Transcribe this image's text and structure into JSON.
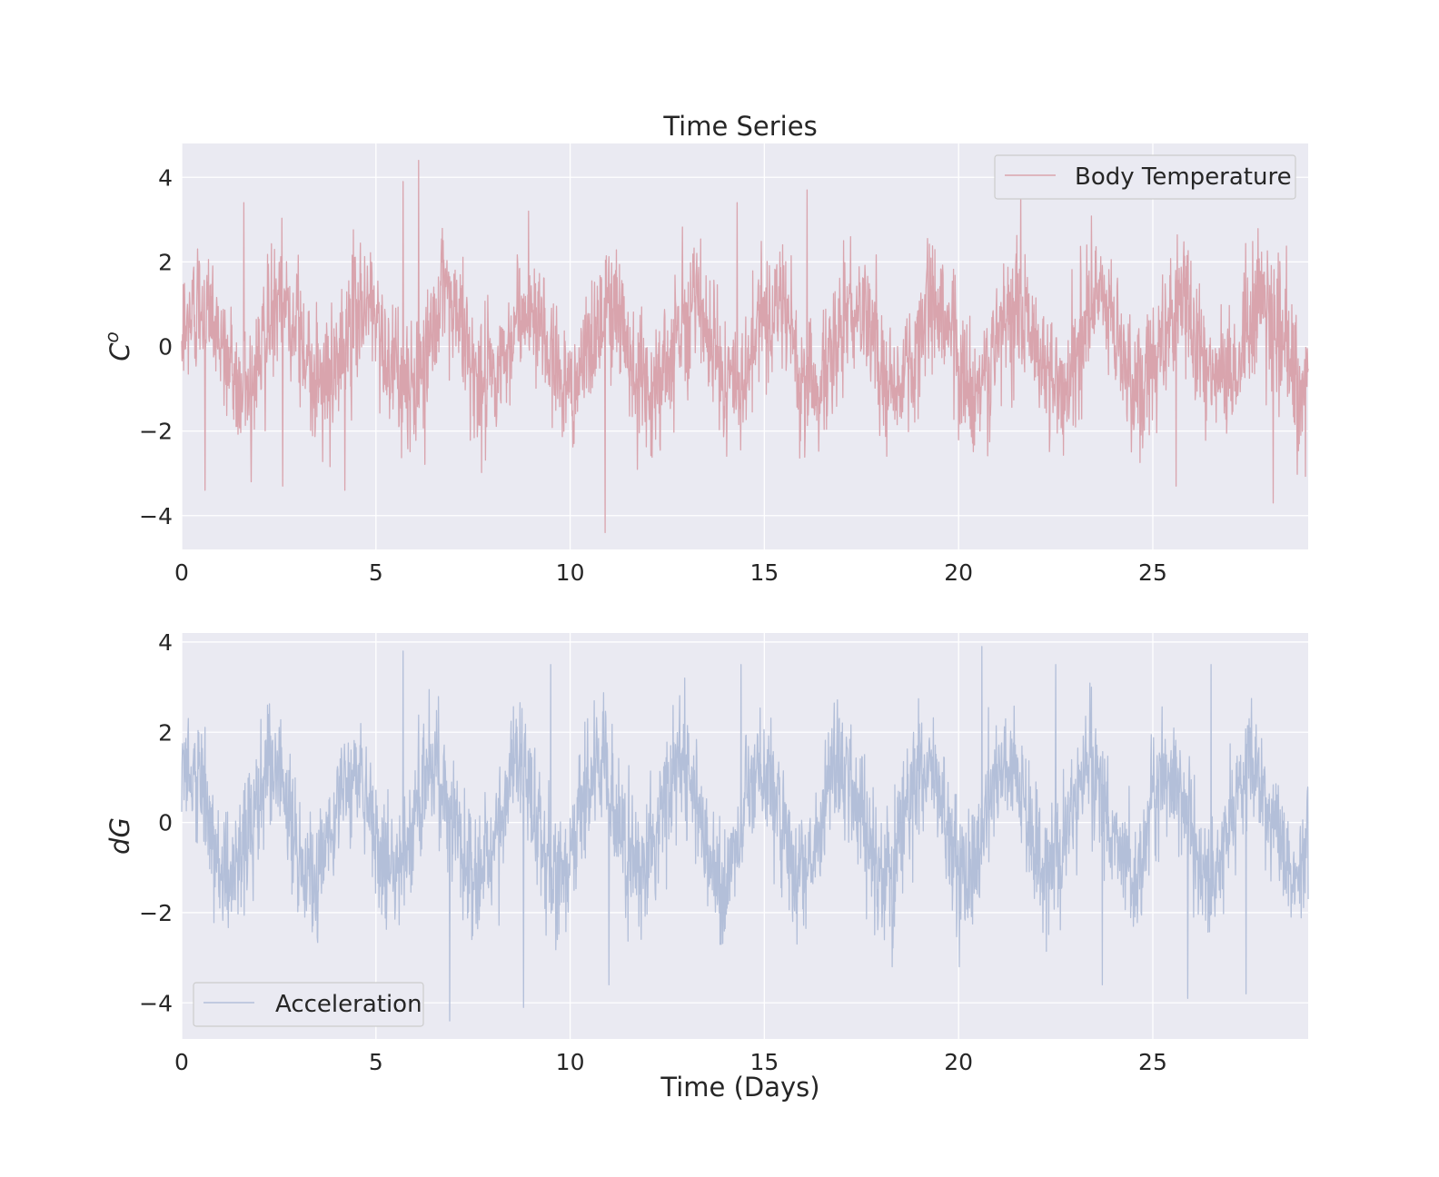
{
  "chart_data": [
    {
      "type": "line",
      "title": "Time Series",
      "xlabel": "",
      "ylabel": "C°",
      "ylabel_base": "C",
      "ylabel_sup": "o",
      "xlim": [
        0,
        29
      ],
      "ylim": [
        -4.8,
        4.8
      ],
      "xticks": [
        0,
        5,
        10,
        15,
        20,
        25
      ],
      "yticks": [
        -4,
        -2,
        0,
        2,
        4
      ],
      "ytick_labels": [
        "−4",
        "−2",
        "0",
        "2",
        "4"
      ],
      "grid": true,
      "legend_position": "upper-right",
      "series": [
        {
          "name": "Body Temperature",
          "color": "#dd8452",
          "draw_color": "#d9a4ad",
          "period_days": 2.1,
          "amplitude": 1.0,
          "noise": 0.95,
          "peaks": [
            [
              6.1,
              4.4
            ],
            [
              5.7,
              3.9
            ],
            [
              1.6,
              3.4
            ],
            [
              21.6,
              3.7
            ],
            [
              16.1,
              3.7
            ],
            [
              14.3,
              3.4
            ]
          ],
          "troughs": [
            [
              10.9,
              -4.4
            ],
            [
              28.1,
              -3.7
            ],
            [
              0.6,
              -3.4
            ],
            [
              4.2,
              -3.4
            ],
            [
              2.6,
              -3.3
            ],
            [
              25.6,
              -3.3
            ]
          ]
        }
      ]
    },
    {
      "type": "line",
      "title": "",
      "xlabel": "Time (Days)",
      "ylabel": "dG",
      "xlim": [
        0,
        29
      ],
      "ylim": [
        -4.8,
        4.2
      ],
      "xticks": [
        0,
        5,
        10,
        15,
        20,
        25
      ],
      "yticks": [
        -4,
        -2,
        0,
        2,
        4
      ],
      "ytick_labels": [
        "−4",
        "−2",
        "0",
        "2",
        "4"
      ],
      "grid": true,
      "legend_position": "lower-left",
      "series": [
        {
          "name": "Acceleration",
          "color": "#4c72b0",
          "draw_color": "#b3bfd9",
          "period_days": 2.1,
          "amplitude": 1.2,
          "noise": 0.85,
          "peaks": [
            [
              5.7,
              3.8
            ],
            [
              20.6,
              3.9
            ],
            [
              9.5,
              3.5
            ],
            [
              14.4,
              3.5
            ],
            [
              22.5,
              3.5
            ],
            [
              26.5,
              3.5
            ]
          ],
          "troughs": [
            [
              6.9,
              -4.4
            ],
            [
              8.8,
              -4.1
            ],
            [
              25.9,
              -3.9
            ],
            [
              27.4,
              -3.8
            ],
            [
              11.0,
              -3.6
            ],
            [
              23.7,
              -3.6
            ]
          ]
        }
      ]
    }
  ]
}
